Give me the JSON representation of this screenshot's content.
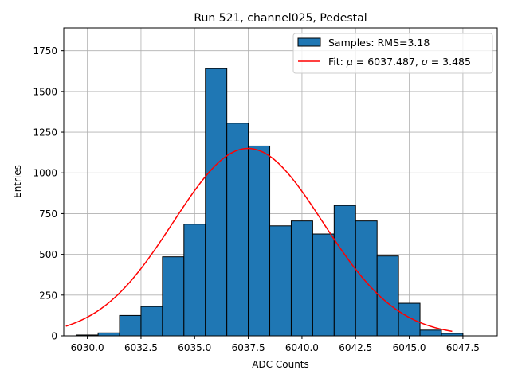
{
  "chart_data": {
    "type": "bar",
    "title": "Run 521, channel025, Pedestal",
    "xlabel": "ADC Counts",
    "ylabel": "Entries",
    "xlim": [
      6028.9,
      6049.1
    ],
    "ylim": [
      0,
      1890
    ],
    "xticks": [
      6030.0,
      6032.5,
      6035.0,
      6037.5,
      6040.0,
      6042.5,
      6045.0,
      6047.5
    ],
    "xtick_labels": [
      "6030.0",
      "6032.5",
      "6035.0",
      "6037.5",
      "6040.0",
      "6042.5",
      "6045.0",
      "6047.5"
    ],
    "yticks": [
      0,
      250,
      500,
      750,
      1000,
      1250,
      1500,
      1750
    ],
    "ytick_labels": [
      "0",
      "250",
      "500",
      "750",
      "1000",
      "1250",
      "1500",
      "1750"
    ],
    "grid": true,
    "legend_position": "top-right",
    "colors": {
      "bars": "#1f77b4",
      "bar_edge": "#000000",
      "fit": "#ff0000"
    },
    "series": [
      {
        "name": "Samples: RMS=3.18",
        "kind": "histogram",
        "bin_width": 1,
        "bins": [
          6029.5,
          6030.5,
          6031.5,
          6032.5,
          6033.5,
          6034.5,
          6035.5,
          6036.5,
          6037.5,
          6038.5,
          6039.5,
          6040.5,
          6041.5,
          6042.5,
          6043.5,
          6044.5,
          6045.5,
          6046.5
        ],
        "values": [
          5,
          18,
          125,
          180,
          485,
          685,
          1640,
          1305,
          1165,
          675,
          705,
          625,
          800,
          705,
          490,
          200,
          35,
          15
        ]
      },
      {
        "name_parts": [
          "Fit: ",
          "μ",
          " = 6037.487, ",
          "σ",
          " = 3.485"
        ],
        "kind": "gaussian-fit",
        "mu": 6037.487,
        "sigma": 3.485,
        "amplitude": 1150,
        "x_range": [
          6029,
          6047
        ]
      }
    ]
  }
}
